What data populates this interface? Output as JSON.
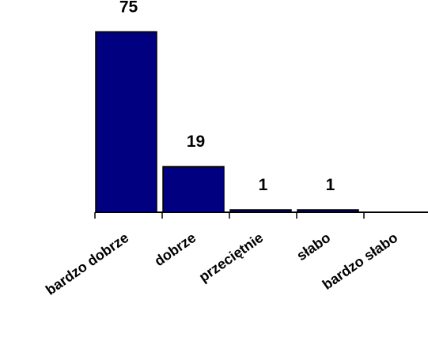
{
  "chart_data": {
    "type": "bar",
    "categories": [
      "bardzo dobrze",
      "dobrze",
      "przeciętnie",
      "słabo",
      "bardzo słabo"
    ],
    "values": [
      75,
      19,
      1,
      1,
      null
    ],
    "data_labels": [
      "75",
      "19",
      "1",
      "1",
      ""
    ],
    "title": "",
    "xlabel": "",
    "ylabel": "",
    "ylim": [
      0,
      80
    ],
    "y_axis_visible": false,
    "grid": false,
    "legend": "none",
    "tick_label_rotation": -35,
    "bar_color": "#000080",
    "bar_edge_color": "#000000"
  }
}
